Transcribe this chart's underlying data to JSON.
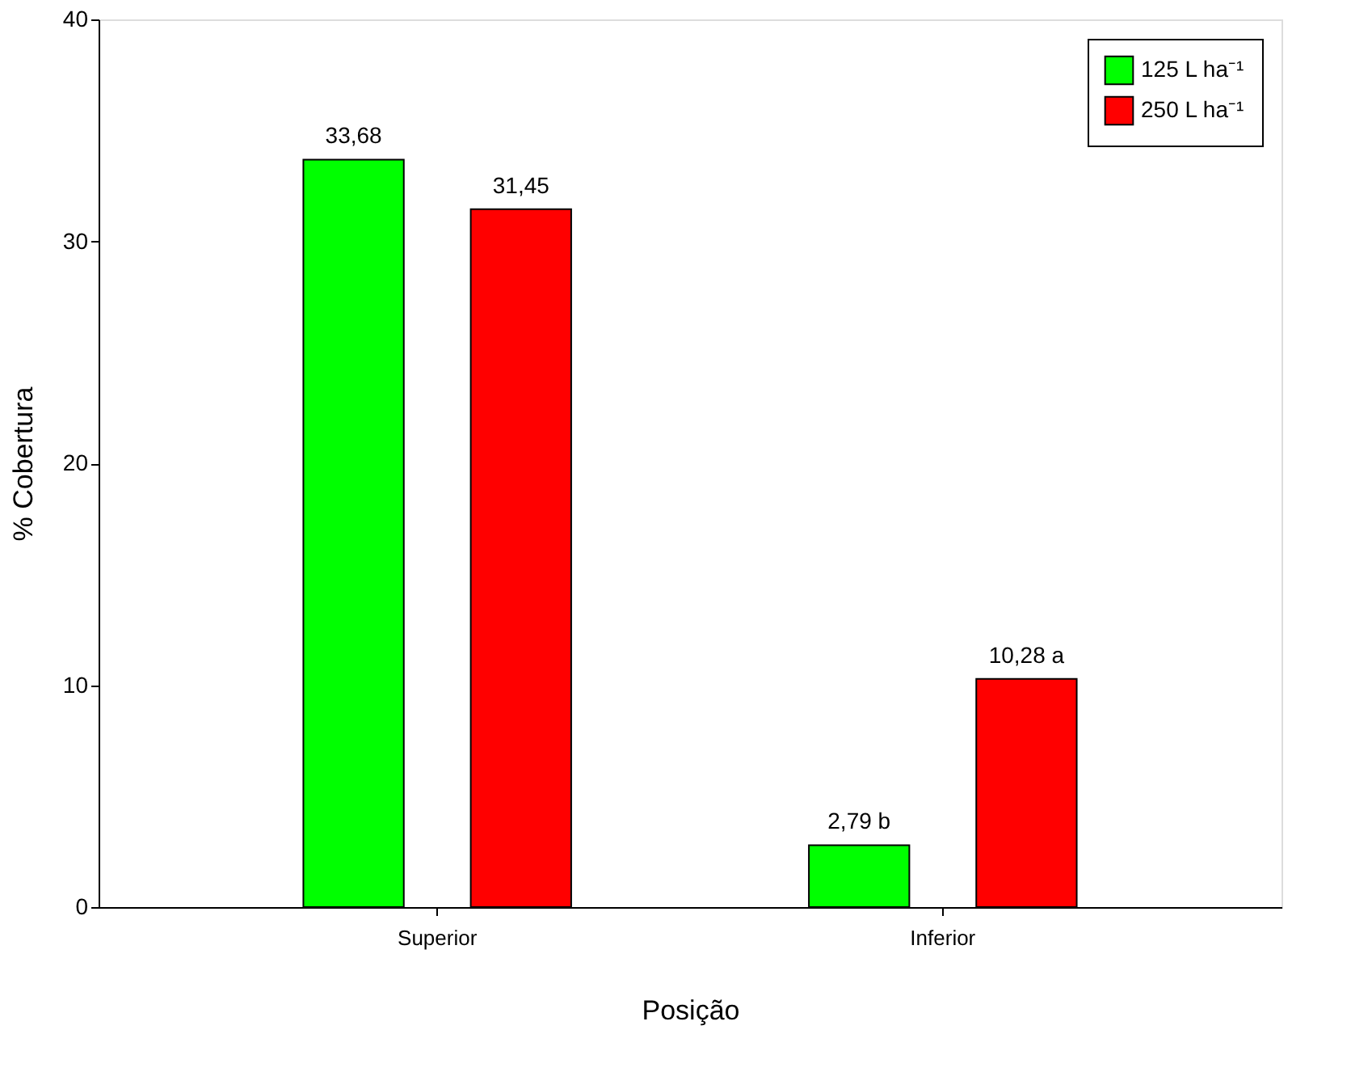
{
  "chart_data": {
    "type": "bar",
    "xlabel": "Posição",
    "ylabel": "% Cobertura",
    "categories": [
      "Superior",
      "Inferior"
    ],
    "series": [
      {
        "name": "125 L ha⁻¹",
        "color": "#00ff00",
        "values": [
          33.68,
          2.79
        ],
        "value_labels": [
          "33,68",
          "2,79 b"
        ]
      },
      {
        "name": "250 L ha⁻¹",
        "color": "#ff0000",
        "values": [
          31.45,
          10.28
        ],
        "value_labels": [
          "31,45",
          "10,28 a"
        ]
      }
    ],
    "ylim": [
      0,
      40
    ],
    "yticks": [
      0,
      10,
      20,
      30,
      40
    ],
    "grid": false,
    "legend": "top right"
  }
}
